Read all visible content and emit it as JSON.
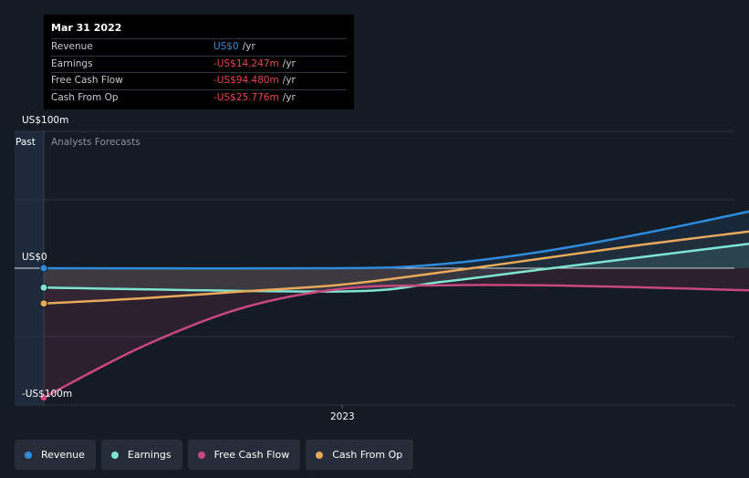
{
  "tooltip": {
    "date": "Mar 31 2022",
    "rows": [
      {
        "name": "Revenue",
        "value": "US$0",
        "unit": "/yr",
        "color": "#2e8bdb"
      },
      {
        "name": "Earnings",
        "value": "-US$14.247m",
        "unit": "/yr",
        "color": "#e5484d"
      },
      {
        "name": "Free Cash Flow",
        "value": "-US$94.480m",
        "unit": "/yr",
        "color": "#e5484d"
      },
      {
        "name": "Cash From Op",
        "value": "-US$25.776m",
        "unit": "/yr",
        "color": "#e5484d"
      }
    ]
  },
  "labels": {
    "past": "Past",
    "forecast": "Analysts Forecasts"
  },
  "legend": [
    {
      "name": "Revenue",
      "color": "#2e8bdb"
    },
    {
      "name": "Earnings",
      "color": "#7ee3cf"
    },
    {
      "name": "Free Cash Flow",
      "color": "#c8477f"
    },
    {
      "name": "Cash From Op",
      "color": "#e8aa5a"
    }
  ],
  "chart_data": {
    "type": "line",
    "x_ticks": [
      {
        "value": 2023,
        "label": "2023"
      }
    ],
    "y_ticks": [
      {
        "value": 100,
        "label": "US$100m"
      },
      {
        "value": 0,
        "label": "US$0"
      },
      {
        "value": -100,
        "label": "-US$100m"
      }
    ],
    "xlim": [
      2022.25,
      2025.25
    ],
    "ylim": [
      -100,
      100
    ],
    "series": [
      {
        "name": "Revenue",
        "color": "#2e8bdb",
        "points": [
          [
            2022.25,
            0
          ],
          [
            2023,
            0
          ],
          [
            2023.25,
            3
          ],
          [
            2023.5,
            12
          ],
          [
            2023.75,
            25
          ],
          [
            2024,
            40
          ],
          [
            2024.25,
            56
          ],
          [
            2024.5,
            72
          ],
          [
            2024.75,
            86
          ],
          [
            2025,
            100
          ]
        ]
      },
      {
        "name": "Earnings",
        "color": "#7ee3cf",
        "points": [
          [
            2022.25,
            -14.2
          ],
          [
            2023,
            -17
          ],
          [
            2023.25,
            -10
          ],
          [
            2023.5,
            -1
          ],
          [
            2023.75,
            8
          ],
          [
            2024,
            17
          ],
          [
            2024.25,
            26
          ],
          [
            2024.5,
            35
          ],
          [
            2024.75,
            44
          ],
          [
            2025,
            52
          ]
        ]
      },
      {
        "name": "Free Cash Flow",
        "color": "#c8477f",
        "points": [
          [
            2022.25,
            -94.5
          ],
          [
            2022.5,
            -57
          ],
          [
            2022.75,
            -29
          ],
          [
            2023,
            -15
          ],
          [
            2023.25,
            -12.5
          ],
          [
            2023.5,
            -12.5
          ],
          [
            2023.75,
            -14
          ],
          [
            2024,
            -16
          ],
          [
            2024.25,
            -18
          ],
          [
            2024.5,
            -20
          ],
          [
            2024.75,
            -22
          ],
          [
            2025,
            -24.5
          ]
        ]
      },
      {
        "name": "Cash From Op",
        "color": "#e8aa5a",
        "points": [
          [
            2022.25,
            -25.8
          ],
          [
            2022.5,
            -22
          ],
          [
            2022.75,
            -17
          ],
          [
            2023,
            -12
          ],
          [
            2023.25,
            -3
          ],
          [
            2023.5,
            7
          ],
          [
            2023.75,
            17
          ],
          [
            2024,
            26
          ],
          [
            2024.25,
            35
          ],
          [
            2024.5,
            43
          ],
          [
            2024.75,
            51
          ],
          [
            2025,
            57
          ]
        ]
      }
    ]
  }
}
